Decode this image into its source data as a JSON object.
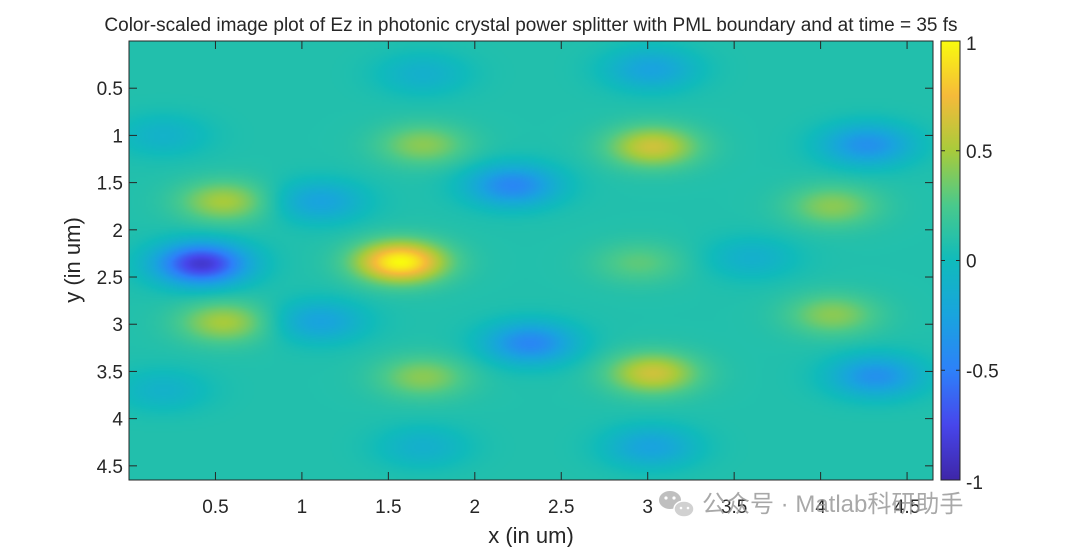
{
  "chart_data": {
    "type": "heatmap",
    "title": "Color-scaled image plot of Ez in photonic crystal power splitter with PML boundary and at time = 35 fs",
    "xlabel": "x (in um)",
    "ylabel": "y (in um)",
    "xlim": [
      0,
      4.65
    ],
    "ylim": [
      0,
      4.65
    ],
    "y_direction": "reverse",
    "x_ticks": [
      0.5,
      1,
      1.5,
      2,
      2.5,
      3,
      3.5,
      4,
      4.5
    ],
    "x_tick_labels": [
      "0.5",
      "1",
      "1.5",
      "2",
      "2.5",
      "3",
      "3.5",
      "4",
      "4.5"
    ],
    "y_ticks": [
      0.5,
      1,
      1.5,
      2,
      2.5,
      3,
      3.5,
      4,
      4.5
    ],
    "y_tick_labels": [
      "0.5",
      "1",
      "1.5",
      "2",
      "2.5",
      "3",
      "3.5",
      "4",
      "4.5"
    ],
    "clim": [
      -1,
      1
    ],
    "colormap": "parula",
    "colorbar_ticks": [
      1,
      0.5,
      0,
      -0.5,
      -1
    ],
    "colorbar_tick_labels": [
      "1",
      "0.5",
      "0",
      "-0.5",
      "-1"
    ],
    "background_value": 0.08,
    "field_features": [
      {
        "x": 1.57,
        "y": 2.34,
        "value": 1.0
      },
      {
        "x": 0.42,
        "y": 2.36,
        "value": -0.85
      },
      {
        "x": 3.03,
        "y": 1.12,
        "value": 0.62
      },
      {
        "x": 3.03,
        "y": 3.52,
        "value": 0.62
      },
      {
        "x": 2.22,
        "y": 1.53,
        "value": -0.45
      },
      {
        "x": 2.32,
        "y": 3.2,
        "value": -0.45
      },
      {
        "x": 4.27,
        "y": 1.1,
        "value": -0.38
      },
      {
        "x": 4.32,
        "y": 3.55,
        "value": -0.38
      },
      {
        "x": 0.55,
        "y": 1.7,
        "value": 0.5
      },
      {
        "x": 0.55,
        "y": 2.98,
        "value": 0.5
      },
      {
        "x": 1.7,
        "y": 1.1,
        "value": 0.42
      },
      {
        "x": 1.7,
        "y": 3.56,
        "value": 0.42
      },
      {
        "x": 4.07,
        "y": 1.75,
        "value": 0.42
      },
      {
        "x": 4.07,
        "y": 2.9,
        "value": 0.42
      },
      {
        "x": 2.95,
        "y": 2.35,
        "value": 0.3
      },
      {
        "x": 0.2,
        "y": 1.0,
        "value": -0.1
      },
      {
        "x": 0.2,
        "y": 3.7,
        "value": -0.1
      },
      {
        "x": 1.1,
        "y": 1.7,
        "value": -0.25
      },
      {
        "x": 1.1,
        "y": 2.97,
        "value": -0.25
      },
      {
        "x": 3.02,
        "y": 0.3,
        "value": -0.25
      },
      {
        "x": 3.02,
        "y": 4.3,
        "value": -0.25
      },
      {
        "x": 1.7,
        "y": 0.35,
        "value": -0.12
      },
      {
        "x": 1.7,
        "y": 4.3,
        "value": -0.12
      },
      {
        "x": 3.6,
        "y": 2.3,
        "value": -0.12
      }
    ]
  },
  "watermark": {
    "text": "公众号 · Matlab科研助手",
    "icon": "wechat-icon"
  }
}
